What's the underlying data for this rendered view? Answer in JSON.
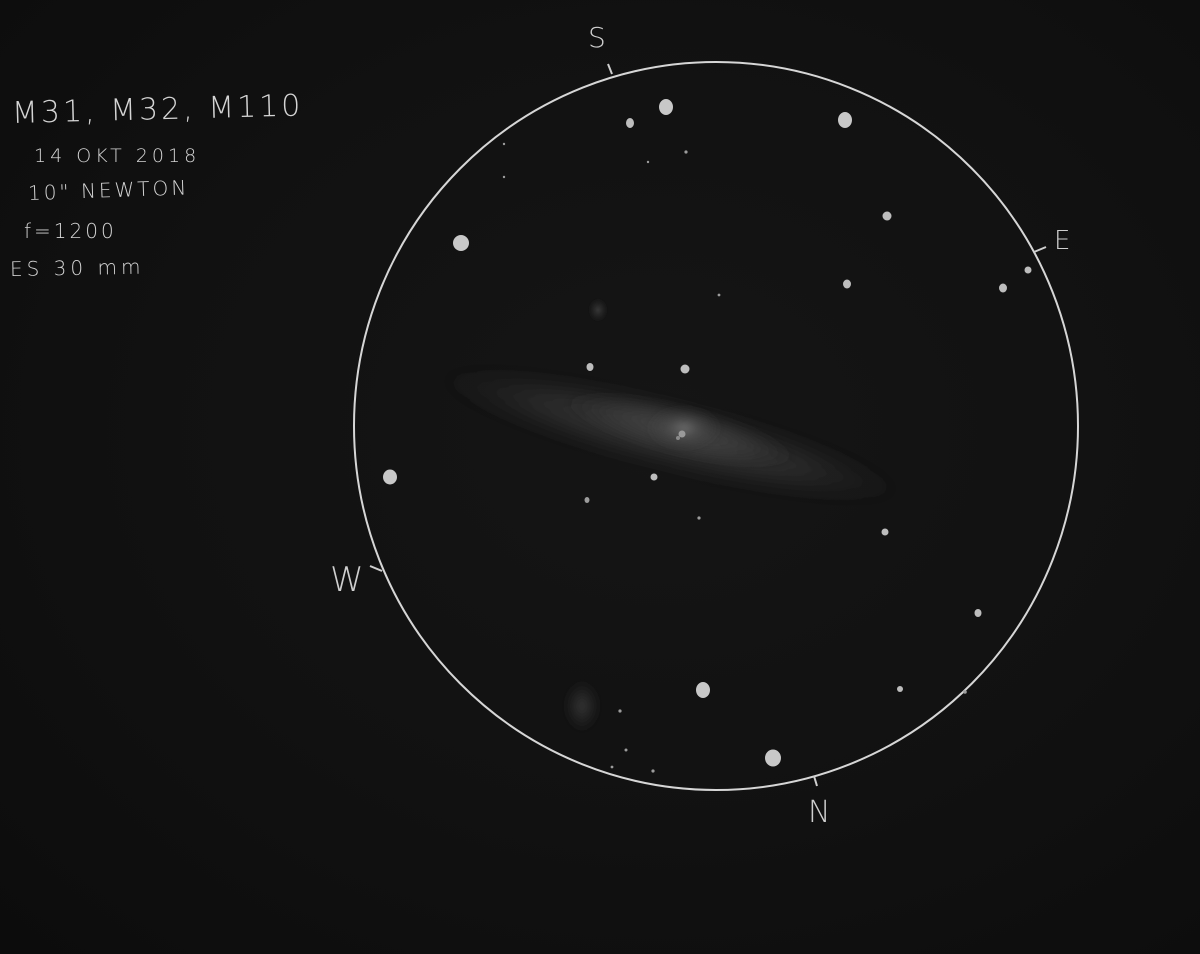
{
  "notes": {
    "title": "M31, M32, M110",
    "date": "14 OKT 2018",
    "telescope": "10\" NEWTON",
    "focal_length": "f=1200",
    "eyepiece": "ES 30 mm"
  },
  "directions": {
    "south": "S",
    "east": "E",
    "west": "W",
    "north": "N"
  },
  "colors": {
    "background": "#111111",
    "ink": "#d4d4d4",
    "galaxy_glow": "#5a5a5a"
  }
}
